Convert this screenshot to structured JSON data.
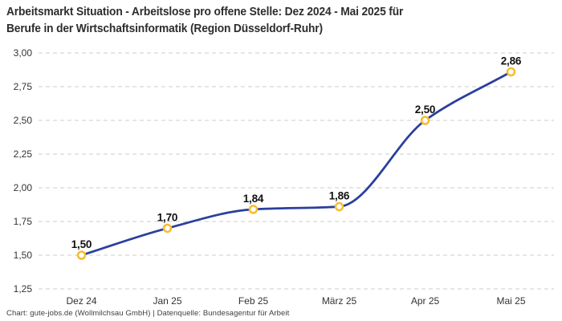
{
  "header": {
    "title_line1": "Arbeitsmarkt Situation - Arbeitslose pro offene Stelle: Dez 2024 - Mai 2025 für",
    "title_line2": "Berufe in der Wirtschaftsinformatik (Region Düsseldorf-Ruhr)"
  },
  "footer": {
    "text": "Chart: gute-jobs.de (Wollmilchsau GmbH) | Datenquelle: Bundesagentur für Arbeit"
  },
  "chart_data": {
    "type": "line",
    "title": "Arbeitsmarkt Situation - Arbeitslose pro offene Stelle: Dez 2024 - Mai 2025 für Berufe in der Wirtschaftsinformatik (Region Düsseldorf-Ruhr)",
    "categories": [
      "Dez 24",
      "Jan 25",
      "Feb 25",
      "März 25",
      "Apr 25",
      "Mai 25"
    ],
    "values": [
      1.5,
      1.7,
      1.84,
      1.86,
      2.5,
      2.86
    ],
    "value_labels": [
      "1,50",
      "1,70",
      "1,84",
      "1,86",
      "2,50",
      "2,86"
    ],
    "y_ticks": [
      {
        "value": 3.0,
        "label": "3,00"
      },
      {
        "value": 2.75,
        "label": "2,75"
      },
      {
        "value": 2.5,
        "label": "2,50"
      },
      {
        "value": 2.25,
        "label": "2,25"
      },
      {
        "value": 2.0,
        "label": "2,00"
      },
      {
        "value": 1.75,
        "label": "1,75"
      },
      {
        "value": 1.5,
        "label": "1,50"
      },
      {
        "value": 1.25,
        "label": "1,25"
      }
    ],
    "ylim": [
      1.25,
      3.0
    ],
    "xlabel": "",
    "ylabel": "",
    "legend": "none",
    "grid": "horizontal-dashed",
    "colors": {
      "line": "#2a3f9d",
      "marker_stroke": "#f6bd2b",
      "marker_fill": "#ffffff",
      "grid": "#cccccc",
      "label_text": "#111111",
      "tick_text": "#333333"
    }
  }
}
